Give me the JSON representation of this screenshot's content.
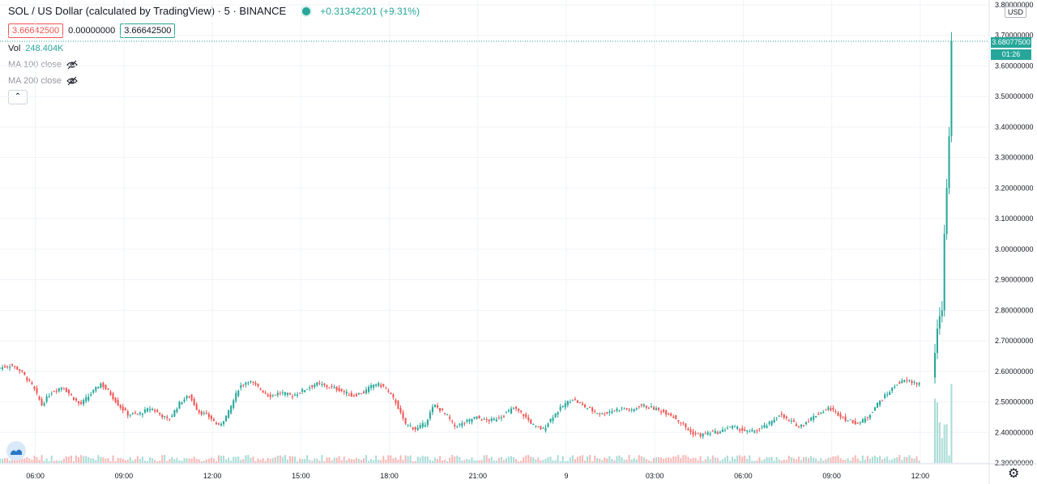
{
  "header": {
    "symbol_title": "SOL / US Dollar (calculated by TradingView) · 5 · BINANCE",
    "change_text": "+0.31342201 (+9.31%)",
    "bid": "3.66642500",
    "spread": "0.00000000",
    "ask": "3.66642500"
  },
  "indicators": {
    "vol_label": "Vol",
    "vol_value": "248.404K",
    "ma100_label": "MA 100 close",
    "ma200_label": "MA 200 close",
    "collapse_icon": "chevron-up-icon"
  },
  "axis": {
    "currency_label": "USD",
    "last_price_label": "3.68077500",
    "countdown_label": "01:26"
  },
  "colors": {
    "up": "#26a69a",
    "down": "#ef5350",
    "vol_up": "#a9dcd6",
    "vol_down": "#f7b8b6",
    "grid": "#f0f3fa",
    "last_line": "#26a69a"
  },
  "chart_data": {
    "type": "candlestick",
    "symbol": "SOL / US Dollar",
    "interval": "5",
    "exchange": "BINANCE",
    "y_ticks": [
      "2.30000000",
      "2.40000000",
      "2.50000000",
      "2.60000000",
      "2.70000000",
      "2.80000000",
      "2.90000000",
      "3.00000000",
      "3.10000000",
      "3.20000000",
      "3.30000000",
      "3.40000000",
      "3.50000000",
      "3.60000000",
      "3.70000000",
      "3.80000000"
    ],
    "ylim": [
      2.3,
      3.8
    ],
    "x_ticks": [
      "06:00",
      "09:00",
      "12:00",
      "15:00",
      "18:00",
      "21:00",
      "9",
      "03:00",
      "06:00",
      "09:00",
      "12:00"
    ],
    "x_tick_hours": [
      6,
      9,
      12,
      15,
      18,
      21,
      24,
      27,
      30,
      33,
      36
    ],
    "x_range_hours": [
      4.8,
      37.9
    ],
    "last_price": 3.680775,
    "price_path": [
      [
        4.8,
        2.61
      ],
      [
        5.3,
        2.62
      ],
      [
        5.6,
        2.6
      ],
      [
        6.0,
        2.55
      ],
      [
        6.3,
        2.49
      ],
      [
        6.6,
        2.53
      ],
      [
        7.0,
        2.55
      ],
      [
        7.3,
        2.52
      ],
      [
        7.6,
        2.49
      ],
      [
        8.0,
        2.53
      ],
      [
        8.3,
        2.56
      ],
      [
        8.6,
        2.53
      ],
      [
        8.9,
        2.49
      ],
      [
        9.2,
        2.46
      ],
      [
        9.6,
        2.46
      ],
      [
        10.0,
        2.48
      ],
      [
        10.3,
        2.46
      ],
      [
        10.6,
        2.44
      ],
      [
        11.0,
        2.5
      ],
      [
        11.3,
        2.52
      ],
      [
        11.6,
        2.47
      ],
      [
        12.0,
        2.45
      ],
      [
        12.3,
        2.42
      ],
      [
        12.6,
        2.46
      ],
      [
        13.0,
        2.55
      ],
      [
        13.3,
        2.57
      ],
      [
        13.6,
        2.55
      ],
      [
        14.0,
        2.52
      ],
      [
        14.4,
        2.53
      ],
      [
        14.8,
        2.52
      ],
      [
        15.2,
        2.54
      ],
      [
        15.6,
        2.56
      ],
      [
        16.0,
        2.55
      ],
      [
        16.4,
        2.54
      ],
      [
        16.8,
        2.52
      ],
      [
        17.2,
        2.53
      ],
      [
        17.6,
        2.56
      ],
      [
        17.9,
        2.55
      ],
      [
        18.3,
        2.5
      ],
      [
        18.6,
        2.43
      ],
      [
        19.0,
        2.41
      ],
      [
        19.3,
        2.43
      ],
      [
        19.6,
        2.49
      ],
      [
        20.0,
        2.46
      ],
      [
        20.3,
        2.42
      ],
      [
        20.6,
        2.43
      ],
      [
        21.0,
        2.45
      ],
      [
        21.3,
        2.44
      ],
      [
        21.6,
        2.44
      ],
      [
        22.0,
        2.46
      ],
      [
        22.3,
        2.48
      ],
      [
        22.6,
        2.46
      ],
      [
        23.0,
        2.42
      ],
      [
        23.3,
        2.41
      ],
      [
        23.6,
        2.45
      ],
      [
        24.0,
        2.49
      ],
      [
        24.3,
        2.51
      ],
      [
        24.6,
        2.49
      ],
      [
        25.0,
        2.47
      ],
      [
        25.3,
        2.46
      ],
      [
        25.6,
        2.47
      ],
      [
        26.0,
        2.48
      ],
      [
        26.3,
        2.47
      ],
      [
        26.6,
        2.49
      ],
      [
        27.0,
        2.48
      ],
      [
        27.3,
        2.47
      ],
      [
        27.6,
        2.46
      ],
      [
        28.0,
        2.43
      ],
      [
        28.3,
        2.4
      ],
      [
        28.6,
        2.39
      ],
      [
        29.0,
        2.4
      ],
      [
        29.3,
        2.4
      ],
      [
        29.6,
        2.42
      ],
      [
        30.0,
        2.41
      ],
      [
        30.3,
        2.4
      ],
      [
        30.6,
        2.41
      ],
      [
        31.0,
        2.43
      ],
      [
        31.3,
        2.46
      ],
      [
        31.6,
        2.44
      ],
      [
        32.0,
        2.42
      ],
      [
        32.3,
        2.44
      ],
      [
        32.6,
        2.46
      ],
      [
        33.0,
        2.48
      ],
      [
        33.3,
        2.46
      ],
      [
        33.6,
        2.44
      ],
      [
        34.0,
        2.43
      ],
      [
        34.3,
        2.45
      ],
      [
        34.6,
        2.49
      ],
      [
        35.0,
        2.53
      ],
      [
        35.3,
        2.56
      ],
      [
        35.6,
        2.57
      ],
      [
        36.0,
        2.56
      ]
    ],
    "note": "price_path hours are relative to the previous day start (24 = '9' day boundary); values in USD"
  }
}
